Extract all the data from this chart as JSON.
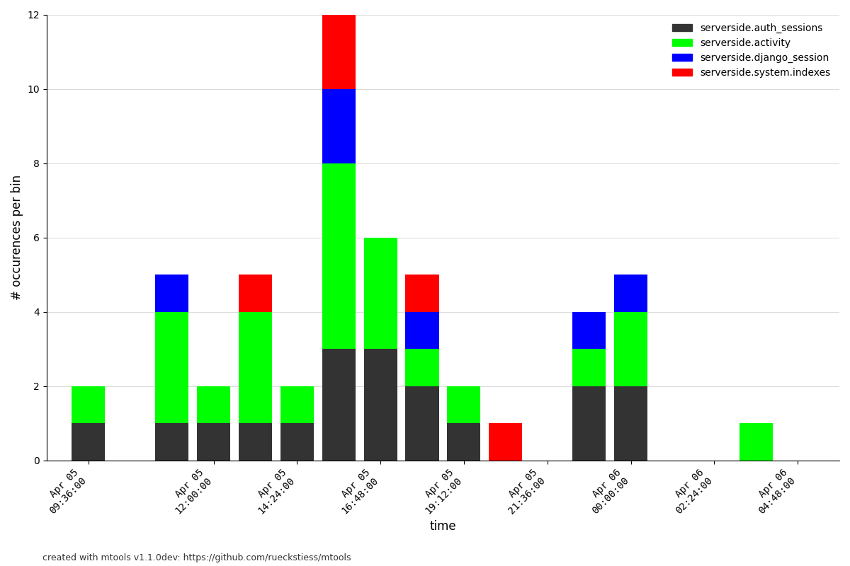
{
  "xlabel": "time",
  "ylabel": "# occurences per bin",
  "footer": "created with mtools v1.1.0dev: https://github.com/rueckstiess/mtools",
  "ylim": [
    0,
    12
  ],
  "yticks": [
    0,
    2,
    4,
    6,
    8,
    10,
    12
  ],
  "series": {
    "serverside.auth_sessions": "#333333",
    "serverside.activity": "#00ff00",
    "serverside.django_session": "#0000ff",
    "serverside.system.indexes": "#ff0000"
  },
  "bar_width": 0.8,
  "n_bins": 18,
  "tick_positions": [
    0,
    3,
    5,
    7,
    9,
    11,
    13,
    15,
    17
  ],
  "tick_labels": [
    "Apr 05\n09:36:00",
    "Apr 05\n12:00:00",
    "Apr 05\n14:24:00",
    "Apr 05\n16:48:00",
    "Apr 05\n19:12:00",
    "Apr 05\n21:36:00",
    "Apr 06\n00:00:00",
    "Apr 06\n02:24:00",
    "Apr 06\n04:48:00"
  ],
  "data": {
    "serverside.auth_sessions": [
      1,
      0,
      1,
      1,
      1,
      1,
      3,
      3,
      2,
      1,
      0,
      0,
      2,
      2,
      0,
      0,
      0,
      0
    ],
    "serverside.activity": [
      1,
      0,
      3,
      1,
      3,
      1,
      5,
      3,
      1,
      1,
      0,
      0,
      1,
      2,
      0,
      0,
      1,
      0
    ],
    "serverside.django_session": [
      0,
      0,
      1,
      0,
      0,
      0,
      2,
      0,
      1,
      0,
      0,
      0,
      1,
      1,
      0,
      0,
      0,
      0
    ],
    "serverside.system.indexes": [
      0,
      0,
      0,
      0,
      1,
      0,
      2,
      0,
      1,
      0,
      1,
      0,
      0,
      0,
      0,
      0,
      0,
      0
    ]
  },
  "legend_order": [
    "serverside.auth_sessions",
    "serverside.activity",
    "serverside.django_session",
    "serverside.system.indexes"
  ],
  "background_color": "#ffffff",
  "figsize": [
    12.0,
    8.0
  ],
  "dpi": 100
}
